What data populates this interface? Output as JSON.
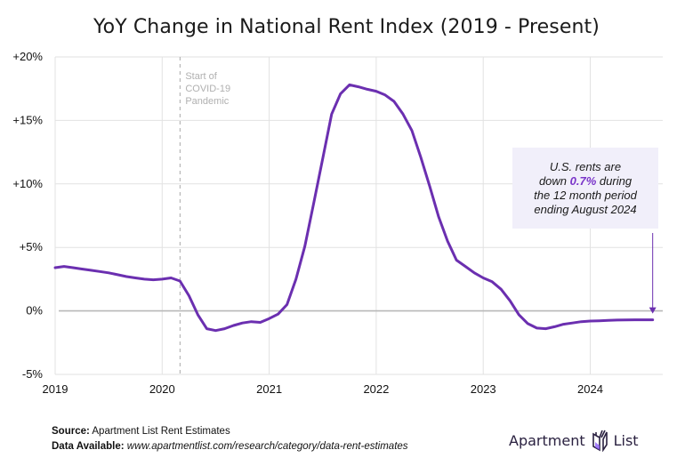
{
  "chart_data": {
    "type": "line",
    "title": "YoY Change in National Rent Index (2019 - Present)",
    "xlabel": "",
    "ylabel": "",
    "x_ticks": [
      "2019",
      "2020",
      "2021",
      "2022",
      "2023",
      "2024"
    ],
    "y_ticks": [
      "-5%",
      "0%",
      "+5%",
      "+10%",
      "+15%",
      "+20%"
    ],
    "y_tick_values": [
      -5,
      0,
      5,
      10,
      15,
      20
    ],
    "ylim": [
      -5,
      20
    ],
    "xlim": [
      "2019-01",
      "2024-09"
    ],
    "grid": true,
    "series": [
      {
        "name": "YoY Change in National Rent Index",
        "color": "#6b2fb0",
        "start": "2019-01",
        "frequency": "monthly",
        "values": [
          3.4,
          3.5,
          3.4,
          3.3,
          3.2,
          3.1,
          3.0,
          2.85,
          2.7,
          2.6,
          2.5,
          2.45,
          2.5,
          2.6,
          2.35,
          1.2,
          -0.3,
          -1.4,
          -1.55,
          -1.4,
          -1.15,
          -0.95,
          -0.85,
          -0.9,
          -0.6,
          -0.25,
          0.5,
          2.5,
          5.1,
          8.5,
          12.0,
          15.5,
          17.1,
          17.8,
          17.65,
          17.45,
          17.3,
          17.0,
          16.5,
          15.5,
          14.2,
          12.1,
          9.8,
          7.4,
          5.5,
          4.0,
          3.5,
          3.0,
          2.6,
          2.3,
          1.7,
          0.8,
          -0.3,
          -1.0,
          -1.35,
          -1.4,
          -1.25,
          -1.05,
          -0.95,
          -0.85,
          -0.8,
          -0.78,
          -0.75,
          -0.72,
          -0.71,
          -0.7,
          -0.7,
          -0.7
        ]
      }
    ],
    "annotations": [
      {
        "type": "vline",
        "x": "2020-03",
        "style": "dashed",
        "label": [
          "Start of",
          "COVID-19",
          "Pandemic"
        ]
      },
      {
        "type": "callout",
        "x": "2024-08",
        "value": -0.7,
        "text_parts": [
          "U.S. rents are",
          "down ",
          "0.7%",
          " during",
          "the 12 month period",
          "ending August 2024"
        ]
      }
    ]
  },
  "colors": {
    "line": "#6b2fb0",
    "highlight": "#7a35c9",
    "grid": "#e2e2e2",
    "zero_line": "#b8b8b8",
    "callout_bg": "#f1effa"
  },
  "callout": {
    "line1": "U.S. rents are",
    "line2_pre": "down ",
    "line2_highlight": "0.7%",
    "line2_post": " during",
    "line3": "the 12 month period",
    "line4": "ending August 2024"
  },
  "footer": {
    "source_label": "Source:",
    "source_value": " Apartment List Rent Estimates",
    "data_label": "Data Available:",
    "data_value": " www.apartmentlist.com/research/category/data-rent-estimates"
  },
  "logo": {
    "left_text": "Apartment",
    "right_text": "List",
    "icon": "apartment-list-logo-icon"
  }
}
